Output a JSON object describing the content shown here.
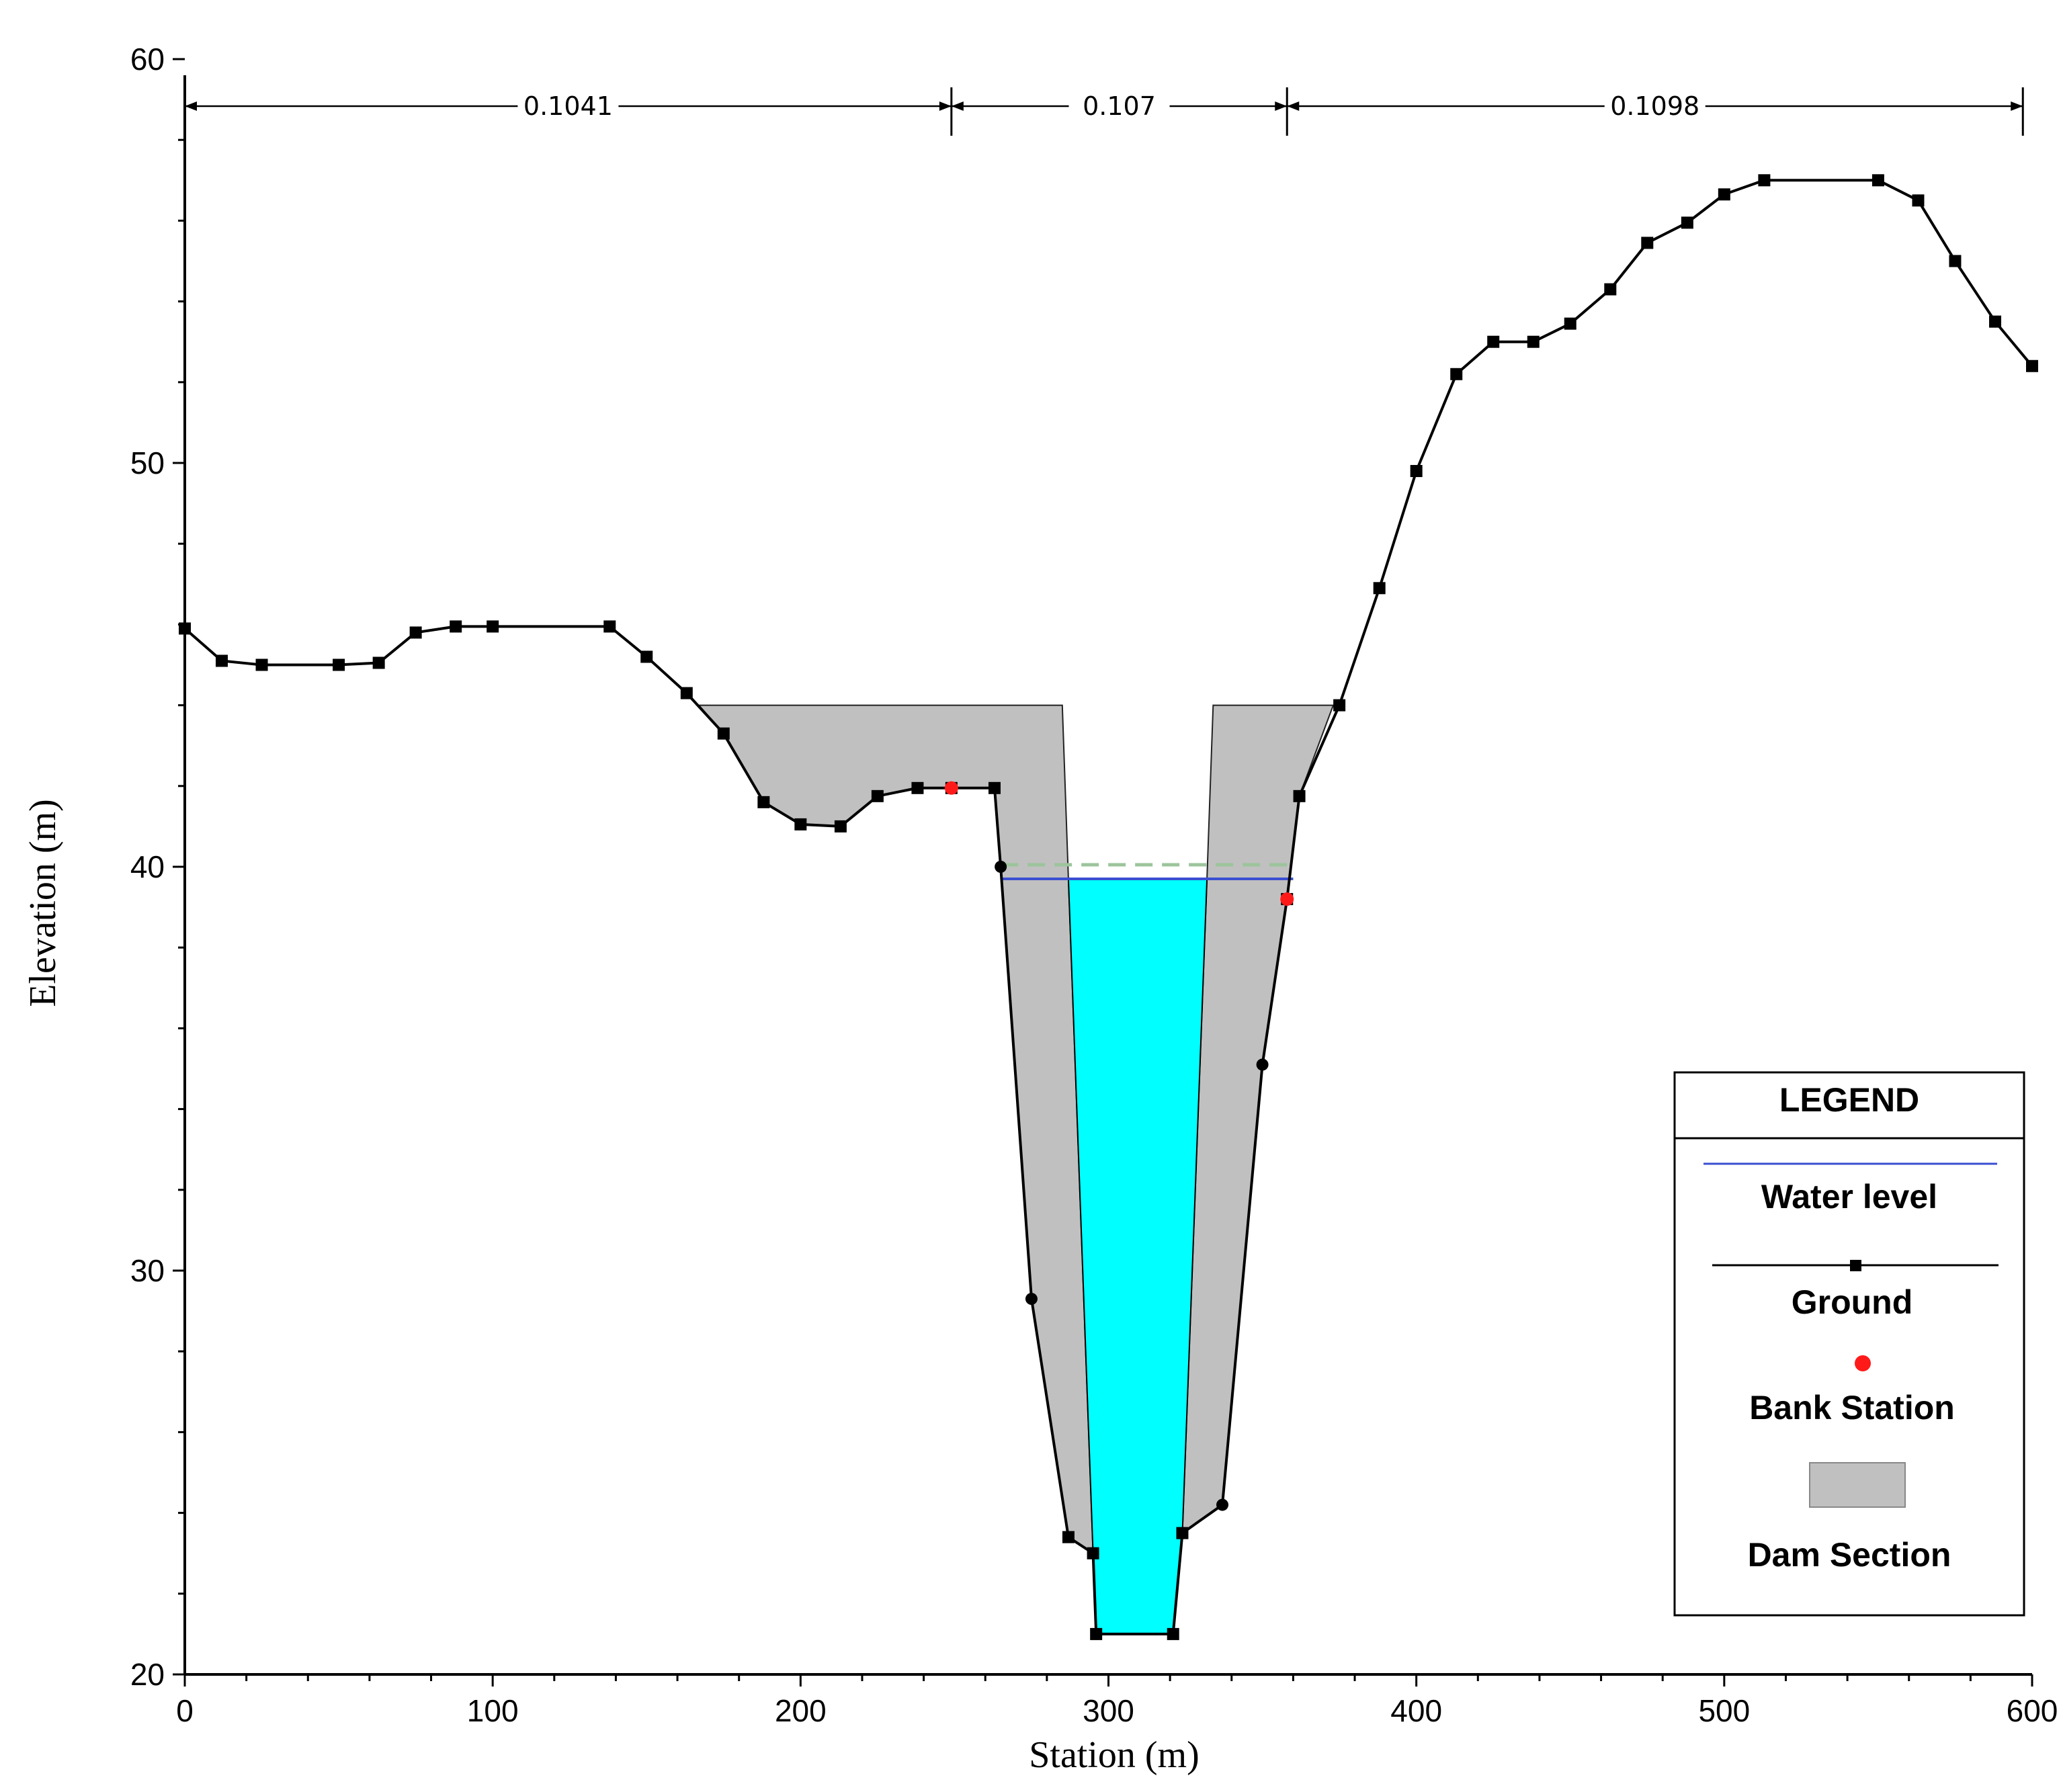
{
  "chart_data": {
    "type": "line",
    "xlabel": "Station (m)",
    "ylabel": "Elevation (m)",
    "xlim": [
      0,
      600
    ],
    "ylim": [
      20,
      60
    ],
    "xticks": [
      0,
      100,
      200,
      300,
      400,
      500,
      600
    ],
    "yticks": [
      20,
      30,
      40,
      50,
      60
    ],
    "manning_n": [
      {
        "from": 0,
        "to": 249,
        "label": "0.1041"
      },
      {
        "from": 249,
        "to": 358,
        "label": "0.107"
      },
      {
        "from": 358,
        "to": 597,
        "label": "0.1098"
      }
    ],
    "series": [
      {
        "name": "Ground",
        "color": "#000000",
        "points": [
          [
            0,
            45.9
          ],
          [
            12,
            45.1
          ],
          [
            25,
            45.0
          ],
          [
            50,
            45.0
          ],
          [
            63,
            45.05
          ],
          [
            75,
            45.8
          ],
          [
            88,
            45.95
          ],
          [
            100,
            45.95
          ],
          [
            138,
            45.95
          ],
          [
            150,
            45.2
          ],
          [
            163,
            44.3
          ],
          [
            175,
            43.3
          ],
          [
            188,
            41.6
          ],
          [
            200,
            41.05
          ],
          [
            213,
            41.0
          ],
          [
            225,
            41.75
          ],
          [
            238,
            41.95
          ],
          [
            249,
            41.95
          ],
          [
            263,
            41.95
          ],
          [
            265,
            40.0
          ],
          [
            275,
            29.3
          ],
          [
            287,
            23.4
          ],
          [
            295,
            23.0
          ],
          [
            296,
            21.0
          ],
          [
            321,
            21.0
          ],
          [
            324,
            23.5
          ],
          [
            337,
            24.2
          ],
          [
            350,
            35.1
          ],
          [
            358,
            39.2
          ],
          [
            362,
            41.75
          ],
          [
            375,
            44.0
          ],
          [
            388,
            46.9
          ],
          [
            400,
            49.8
          ],
          [
            413,
            52.2
          ],
          [
            425,
            53.0
          ],
          [
            438,
            53.0
          ],
          [
            450,
            53.45
          ],
          [
            463,
            54.3
          ],
          [
            475,
            55.45
          ],
          [
            488,
            55.95
          ],
          [
            500,
            56.65
          ],
          [
            513,
            57.0
          ],
          [
            550,
            57.0
          ],
          [
            563,
            56.5
          ],
          [
            575,
            55.0
          ],
          [
            588,
            53.5
          ],
          [
            600,
            52.4
          ]
        ]
      }
    ],
    "water_level": 39.7,
    "dashed_level": 40.05,
    "bank_stations": [
      [
        249,
        41.95
      ],
      [
        358,
        39.2
      ]
    ],
    "dam_sections": [
      [
        [
          167,
          44.0
        ],
        [
          285,
          44.0
        ],
        [
          287,
          39.7
        ],
        [
          295,
          23.0
        ],
        [
          287,
          23.4
        ],
        [
          275,
          29.3
        ],
        [
          265,
          40.0
        ],
        [
          263,
          41.95
        ],
        [
          249,
          41.95
        ],
        [
          238,
          41.95
        ],
        [
          225,
          41.75
        ],
        [
          213,
          41.0
        ],
        [
          200,
          41.05
        ],
        [
          188,
          41.6
        ],
        [
          175,
          43.3
        ]
      ],
      [
        [
          334,
          44.0
        ],
        [
          373,
          44.0
        ],
        [
          362,
          41.75
        ],
        [
          358,
          39.2
        ],
        [
          350,
          35.1
        ],
        [
          337,
          24.2
        ],
        [
          324,
          23.5
        ],
        [
          332,
          39.7
        ]
      ]
    ],
    "water_body": [
      [
        287,
        39.7
      ],
      [
        332,
        39.7
      ],
      [
        324,
        23.5
      ],
      [
        321,
        21.0
      ],
      [
        296,
        21.0
      ],
      [
        295,
        23.0
      ]
    ],
    "legend": {
      "title": "LEGEND",
      "position": "bottom-right",
      "items": [
        {
          "label": "Water level",
          "symbol": "line",
          "color": "#3a4fd0"
        },
        {
          "label": "Ground",
          "symbol": "line-square",
          "color": "#000000"
        },
        {
          "label": "Bank Station",
          "symbol": "dot",
          "color": "#ff1a1a"
        },
        {
          "label": "Dam Section",
          "symbol": "box",
          "color": "#c0c0c0"
        }
      ]
    },
    "colors": {
      "water": "#00ffff",
      "dam": "#c0c0c0",
      "dashed": "#9cc49c"
    }
  }
}
